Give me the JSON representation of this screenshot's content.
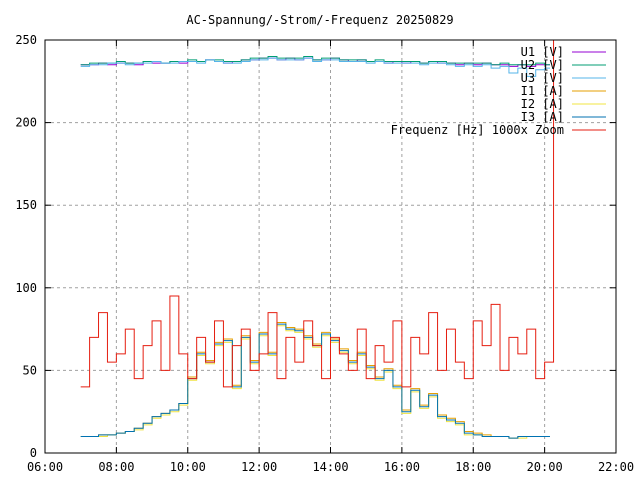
{
  "chart_data": {
    "type": "line",
    "title": "AC-Spannung/-Strom/-Frequenz 20250829",
    "xlabel": "",
    "ylabel": "",
    "xlim_hours": [
      6,
      22
    ],
    "ylim": [
      0,
      250
    ],
    "x_ticks": [
      "06:00",
      "08:00",
      "10:00",
      "12:00",
      "14:00",
      "16:00",
      "18:00",
      "20:00",
      "22:00"
    ],
    "y_ticks": [
      "0",
      "50",
      "100",
      "150",
      "200",
      "250"
    ],
    "grid": true,
    "legend_position": "top-right",
    "x_start_hours": 7.0,
    "x_step_minutes": 15,
    "series": [
      {
        "name": "U1 [V]",
        "color": "#9400d3",
        "values": [
          235,
          235,
          236,
          235,
          236,
          236,
          235,
          237,
          236,
          236,
          237,
          236,
          237,
          237,
          238,
          237,
          236,
          237,
          238,
          238,
          239,
          239,
          238,
          239,
          238,
          239,
          238,
          238,
          239,
          238,
          237,
          238,
          237,
          237,
          236,
          237,
          236,
          237,
          236,
          237,
          236,
          236,
          235,
          236,
          235,
          236,
          235,
          235,
          234,
          235,
          234,
          235,
          235
        ]
      },
      {
        "name": "U2 [V]",
        "color": "#009e73",
        "values": [
          235,
          236,
          236,
          236,
          237,
          236,
          236,
          237,
          237,
          236,
          237,
          237,
          238,
          237,
          238,
          238,
          237,
          237,
          238,
          239,
          239,
          240,
          239,
          239,
          239,
          240,
          238,
          239,
          239,
          238,
          238,
          238,
          237,
          238,
          237,
          237,
          237,
          237,
          236,
          237,
          237,
          236,
          236,
          236,
          236,
          236,
          235,
          236,
          235,
          235,
          235,
          236,
          235
        ]
      },
      {
        "name": "U3 [V]",
        "color": "#56b4e9",
        "values": [
          234,
          235,
          235,
          236,
          236,
          235,
          236,
          236,
          237,
          236,
          236,
          237,
          237,
          236,
          238,
          237,
          236,
          236,
          237,
          238,
          238,
          239,
          238,
          238,
          238,
          239,
          237,
          238,
          238,
          237,
          237,
          237,
          236,
          237,
          236,
          236,
          236,
          236,
          235,
          236,
          236,
          235,
          234,
          235,
          234,
          235,
          233,
          234,
          230,
          233,
          228,
          232,
          233
        ]
      },
      {
        "name": "I1 [A]",
        "color": "#e69f00",
        "values": [
          10,
          10,
          11,
          11,
          12,
          13,
          15,
          18,
          22,
          24,
          26,
          30,
          46,
          61,
          56,
          67,
          69,
          41,
          71,
          56,
          73,
          61,
          79,
          76,
          75,
          71,
          66,
          73,
          69,
          63,
          56,
          61,
          53,
          46,
          51,
          41,
          26,
          39,
          29,
          36,
          23,
          21,
          19,
          13,
          12,
          11,
          10,
          10,
          9,
          10,
          10,
          10,
          10
        ]
      },
      {
        "name": "I2 [A]",
        "color": "#f0e442",
        "values": [
          10,
          10,
          10,
          11,
          12,
          13,
          14,
          17,
          21,
          23,
          25,
          29,
          44,
          59,
          54,
          65,
          67,
          39,
          69,
          54,
          71,
          59,
          77,
          74,
          73,
          69,
          64,
          71,
          67,
          61,
          54,
          59,
          51,
          44,
          49,
          39,
          24,
          37,
          27,
          34,
          21,
          19,
          17,
          11,
          11,
          10,
          10,
          10,
          9,
          9,
          10,
          10,
          10
        ]
      },
      {
        "name": "I3 [A]",
        "color": "#0072b2",
        "values": [
          10,
          10,
          11,
          11,
          12,
          13,
          15,
          18,
          22,
          24,
          26,
          30,
          45,
          60,
          55,
          66,
          68,
          40,
          70,
          55,
          72,
          60,
          78,
          75,
          74,
          70,
          65,
          72,
          68,
          62,
          55,
          60,
          52,
          45,
          50,
          40,
          25,
          38,
          28,
          35,
          22,
          20,
          18,
          12,
          11,
          10,
          10,
          10,
          9,
          10,
          10,
          10,
          10
        ]
      },
      {
        "name": "Frequenz [Hz] 1000x Zoom",
        "color": "#e51e10",
        "values": [
          40,
          70,
          85,
          55,
          60,
          75,
          45,
          65,
          80,
          50,
          95,
          60,
          45,
          70,
          55,
          80,
          40,
          65,
          75,
          50,
          60,
          85,
          45,
          70,
          55,
          80,
          65,
          45,
          70,
          60,
          50,
          75,
          45,
          65,
          55,
          80,
          40,
          70,
          60,
          85,
          50,
          75,
          55,
          45,
          80,
          65,
          90,
          50,
          70,
          60,
          75,
          45,
          55,
          250
        ]
      }
    ]
  }
}
